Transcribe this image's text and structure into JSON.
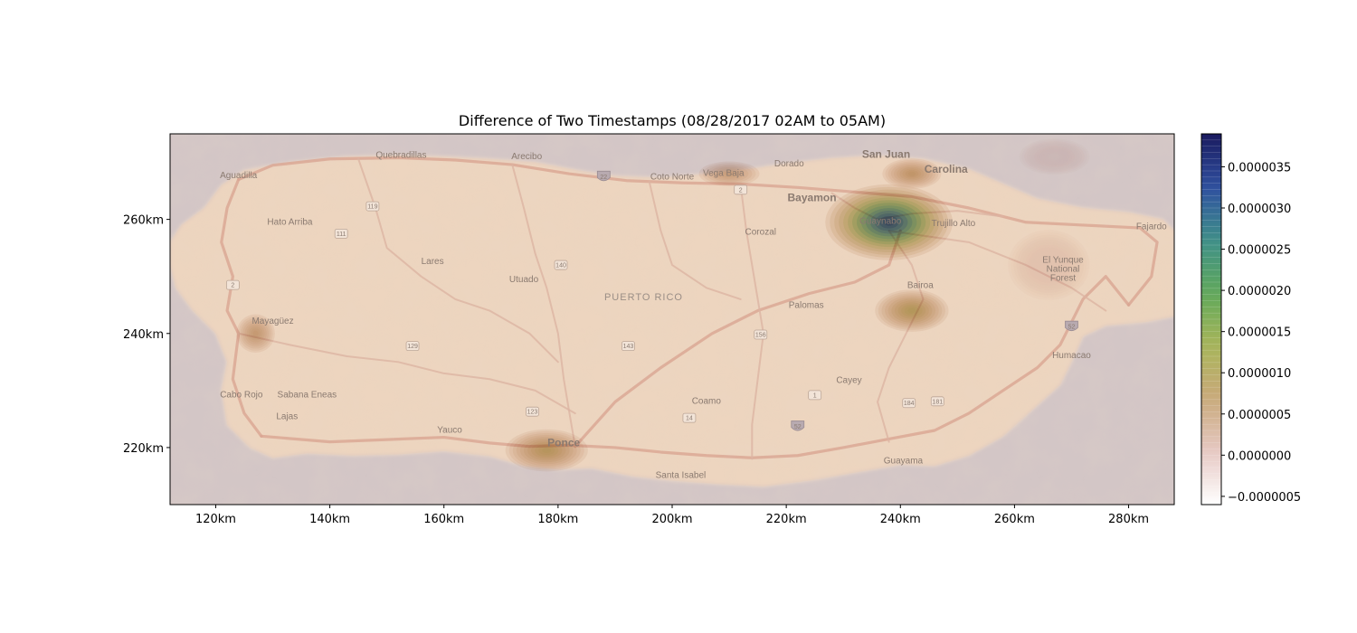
{
  "chart_data": {
    "type": "heatmap",
    "title": "Difference of Two Timestamps (08/28/2017 02AM to 05AM)",
    "xlabel": "",
    "ylabel": "",
    "xlim": [
      112,
      288
    ],
    "ylim": [
      210,
      275
    ],
    "x_ticks": [
      120,
      140,
      160,
      180,
      200,
      220,
      240,
      260,
      280
    ],
    "x_tick_labels": [
      "120km",
      "140km",
      "160km",
      "180km",
      "200km",
      "220km",
      "240km",
      "260km",
      "280km"
    ],
    "y_ticks": [
      220,
      240,
      260
    ],
    "y_tick_labels": [
      "220km",
      "240km",
      "260km"
    ],
    "grid": false,
    "colorbar": {
      "range": [
        -6e-07,
        3.9e-06
      ],
      "ticks": [
        -5e-07,
        0.0,
        5e-07,
        1e-06,
        1.5e-06,
        2e-06,
        2.5e-06,
        3e-06,
        3.5e-06
      ],
      "tick_labels": [
        "−0.0000005",
        "0.0000000",
        "0.0000005",
        "0.0000010",
        "0.0000015",
        "0.0000020",
        "0.0000025",
        "0.0000030",
        "0.0000035"
      ],
      "colormap_stops": [
        "#ffffff",
        "#e6c9c4",
        "#c9a97a",
        "#a9b55a",
        "#5fa85a",
        "#3f8f8a",
        "#2f4f9f",
        "#1a1a5f"
      ]
    },
    "hotspots": [
      {
        "x": 238,
        "y": 259.5,
        "value": 3.9e-06,
        "sx": 11,
        "sy": 6.5
      },
      {
        "x": 178,
        "y": 219.5,
        "value": 1e-06,
        "sx": 9,
        "sy": 4.5
      },
      {
        "x": 242,
        "y": 244,
        "value": 1.1e-06,
        "sx": 8,
        "sy": 4.5
      },
      {
        "x": 210,
        "y": 268,
        "value": 5e-07,
        "sx": 9,
        "sy": 3.5
      },
      {
        "x": 127,
        "y": 240,
        "value": 6e-07,
        "sx": 5,
        "sy": 5
      },
      {
        "x": 242,
        "y": 268,
        "value": 7e-07,
        "sx": 7,
        "sy": 3.5
      },
      {
        "x": 266,
        "y": 252,
        "value": -4e-07,
        "sx": 7,
        "sy": 6
      },
      {
        "x": 267,
        "y": 271,
        "value": -5e-07,
        "sx": 6,
        "sy": 3
      }
    ],
    "map": {
      "region_label": "PUERTO RICO",
      "places": [
        {
          "name": "San Juan",
          "x": 237.5,
          "y": 270.8,
          "style": "big"
        },
        {
          "name": "Carolina",
          "x": 248,
          "y": 268.2,
          "style": "big"
        },
        {
          "name": "Bayamon",
          "x": 224.5,
          "y": 263.2,
          "style": "big"
        },
        {
          "name": "Guaynabo",
          "x": 236.5,
          "y": 259.2,
          "style": "normal"
        },
        {
          "name": "Trujillo Alto",
          "x": 249.3,
          "y": 258.8,
          "style": "normal"
        },
        {
          "name": "Dorado",
          "x": 220.5,
          "y": 269.3,
          "style": "normal"
        },
        {
          "name": "Vega Baja",
          "x": 209,
          "y": 267.6,
          "style": "normal"
        },
        {
          "name": "Coto Norte",
          "x": 200,
          "y": 267,
          "style": "normal"
        },
        {
          "name": "Arecibo",
          "x": 174.5,
          "y": 270.6,
          "style": "normal"
        },
        {
          "name": "Quebradillas",
          "x": 152.5,
          "y": 270.8,
          "style": "normal"
        },
        {
          "name": "Aguadilla",
          "x": 124,
          "y": 267.2,
          "style": "normal"
        },
        {
          "name": "Hato Arriba",
          "x": 133,
          "y": 259.1,
          "style": "normal"
        },
        {
          "name": "Corozal",
          "x": 215.5,
          "y": 257.3,
          "style": "normal"
        },
        {
          "name": "Lares",
          "x": 158,
          "y": 252.2,
          "style": "normal"
        },
        {
          "name": "Utuado",
          "x": 174,
          "y": 249,
          "style": "normal"
        },
        {
          "name": "Bairoa",
          "x": 243.5,
          "y": 248,
          "style": "normal"
        },
        {
          "name": "El Yunque",
          "x": 268.5,
          "y": 252.4,
          "style": "faint"
        },
        {
          "name": "National",
          "x": 268.5,
          "y": 250.8,
          "style": "faint"
        },
        {
          "name": "Forest",
          "x": 268.5,
          "y": 249.2,
          "style": "faint"
        },
        {
          "name": "Fajardo",
          "x": 284,
          "y": 258.3,
          "style": "normal"
        },
        {
          "name": "Palomas",
          "x": 223.5,
          "y": 244.5,
          "style": "normal"
        },
        {
          "name": "Mayagüez",
          "x": 130,
          "y": 241.7,
          "style": "normal"
        },
        {
          "name": "Humacao",
          "x": 270,
          "y": 235.7,
          "style": "normal"
        },
        {
          "name": "Cayey",
          "x": 231,
          "y": 231.3,
          "style": "normal"
        },
        {
          "name": "Cabo Rojo",
          "x": 124.5,
          "y": 228.8,
          "style": "normal"
        },
        {
          "name": "Sabana Eneas",
          "x": 136,
          "y": 228.8,
          "style": "normal"
        },
        {
          "name": "Coamo",
          "x": 206,
          "y": 227.7,
          "style": "normal"
        },
        {
          "name": "Lajas",
          "x": 132.5,
          "y": 225,
          "style": "normal"
        },
        {
          "name": "Yauco",
          "x": 161,
          "y": 222.6,
          "style": "normal"
        },
        {
          "name": "Ponce",
          "x": 181,
          "y": 220.2,
          "style": "big"
        },
        {
          "name": "Guayama",
          "x": 240.5,
          "y": 217.2,
          "style": "normal"
        },
        {
          "name": "Santa Isabel",
          "x": 201.5,
          "y": 214.7,
          "style": "normal"
        }
      ],
      "shields": [
        {
          "label": "22",
          "x": 188,
          "y": 267.5,
          "kind": "interstate"
        },
        {
          "label": "2",
          "x": 212,
          "y": 265.2,
          "kind": "highway"
        },
        {
          "label": "119",
          "x": 147.5,
          "y": 262.3,
          "kind": "highway"
        },
        {
          "label": "111",
          "x": 142,
          "y": 257.5,
          "kind": "highway"
        },
        {
          "label": "140",
          "x": 180.5,
          "y": 252,
          "kind": "highway"
        },
        {
          "label": "2",
          "x": 123,
          "y": 248.5,
          "kind": "highway"
        },
        {
          "label": "129",
          "x": 154.5,
          "y": 237.8,
          "kind": "highway"
        },
        {
          "label": "143",
          "x": 192.3,
          "y": 237.8,
          "kind": "highway"
        },
        {
          "label": "156",
          "x": 215.5,
          "y": 239.8,
          "kind": "highway"
        },
        {
          "label": "52",
          "x": 270,
          "y": 241.2,
          "kind": "interstate"
        },
        {
          "label": "1",
          "x": 225,
          "y": 229.2,
          "kind": "highway"
        },
        {
          "label": "184",
          "x": 241.5,
          "y": 227.8,
          "kind": "highway"
        },
        {
          "label": "181",
          "x": 246.5,
          "y": 228.1,
          "kind": "highway"
        },
        {
          "label": "123",
          "x": 175.5,
          "y": 226.3,
          "kind": "highway"
        },
        {
          "label": "14",
          "x": 203,
          "y": 225.2,
          "kind": "highway"
        },
        {
          "label": "52",
          "x": 222,
          "y": 223.7,
          "kind": "interstate"
        }
      ]
    }
  }
}
